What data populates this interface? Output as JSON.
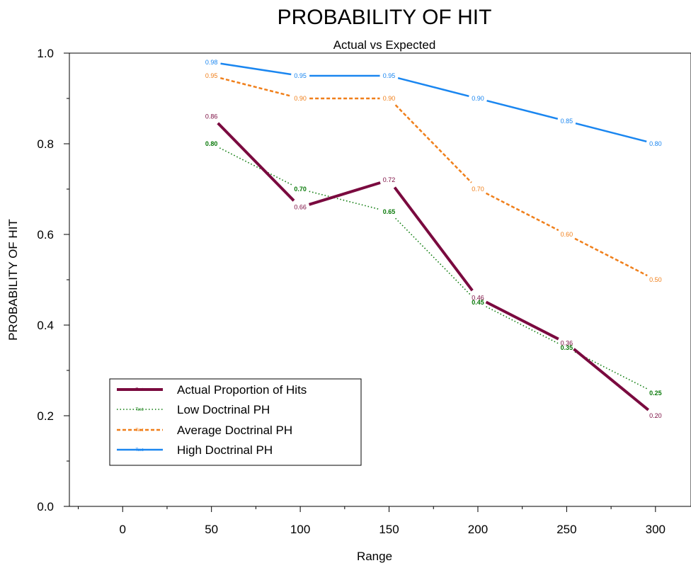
{
  "chart_data": {
    "type": "line",
    "title": "PROBABILITY OF HIT",
    "subtitle": "Actual vs Expected",
    "xlabel": "Range",
    "ylabel": "PROBABILITY OF HIT",
    "xlim": [
      -30,
      320
    ],
    "ylim": [
      0,
      1.0
    ],
    "x_ticks": [
      0,
      50,
      100,
      150,
      200,
      250,
      300
    ],
    "y_ticks": [
      0.0,
      0.2,
      0.4,
      0.6,
      0.8,
      1.0
    ],
    "x_tick_labels": [
      "0",
      "50",
      "100",
      "150",
      "200",
      "250",
      "300"
    ],
    "y_tick_labels": [
      "0.0",
      "0.2",
      "0.4",
      "0.6",
      "0.8",
      "1.0"
    ],
    "grid": false,
    "legend_position": "bottom-left",
    "legend_marker_text": "Text",
    "x": [
      50,
      100,
      150,
      200,
      250,
      300
    ],
    "series": [
      {
        "name": "Actual Proportion of Hits",
        "values": [
          0.86,
          0.66,
          0.72,
          0.46,
          0.36,
          0.2
        ],
        "labels": [
          "0.86",
          "0.66",
          "0.72",
          "0.46",
          "0.36",
          "0.20"
        ],
        "color": "#7a0a3f",
        "style": "solid-thick"
      },
      {
        "name": "Low Doctrinal PH",
        "values": [
          0.8,
          0.7,
          0.65,
          0.45,
          0.35,
          0.25
        ],
        "labels": [
          "0.80",
          "0.70",
          "0.65",
          "0.45",
          "0.35",
          "0.25"
        ],
        "color": "#0a7a0a",
        "style": "dotted"
      },
      {
        "name": "Average Doctrinal PH",
        "values": [
          0.95,
          0.9,
          0.9,
          0.7,
          0.6,
          0.5
        ],
        "labels": [
          "0.95",
          "0.90",
          "0.90",
          "0.70",
          "0.60",
          "0.50"
        ],
        "color": "#f07f1a",
        "style": "dashed"
      },
      {
        "name": "High Doctrinal PH",
        "values": [
          0.98,
          0.95,
          0.95,
          0.9,
          0.85,
          0.8
        ],
        "labels": [
          "0.98",
          "0.95",
          "0.95",
          "0.90",
          "0.85",
          "0.80"
        ],
        "color": "#1a86f0",
        "style": "solid"
      }
    ]
  }
}
